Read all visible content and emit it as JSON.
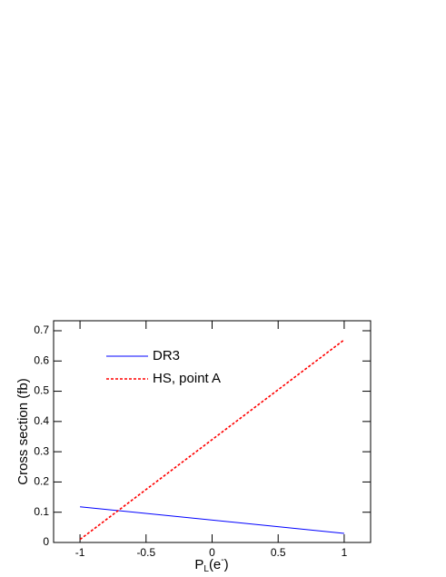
{
  "chart_data": {
    "type": "line",
    "x_label_parts": [
      "P",
      "L",
      "(e",
      "-",
      ")"
    ],
    "y_label": "Cross section (fb)",
    "x": [
      -1,
      1
    ],
    "series": [
      {
        "name": "DR3",
        "color": "#0000ff",
        "dash": false,
        "values": [
          0.118,
          0.03
        ]
      },
      {
        "name": "HS, point A",
        "color": "#ff0000",
        "dash": true,
        "values": [
          0.01,
          0.67
        ]
      }
    ],
    "xlim": [
      -1.2,
      1.2
    ],
    "ylim": [
      0,
      0.733
    ],
    "xticks": [
      -1,
      -0.5,
      0,
      0.5,
      1
    ],
    "yticks": [
      0,
      0.1,
      0.2,
      0.3,
      0.4,
      0.5,
      0.6,
      0.7
    ],
    "grid": false,
    "legend": "top-left"
  }
}
